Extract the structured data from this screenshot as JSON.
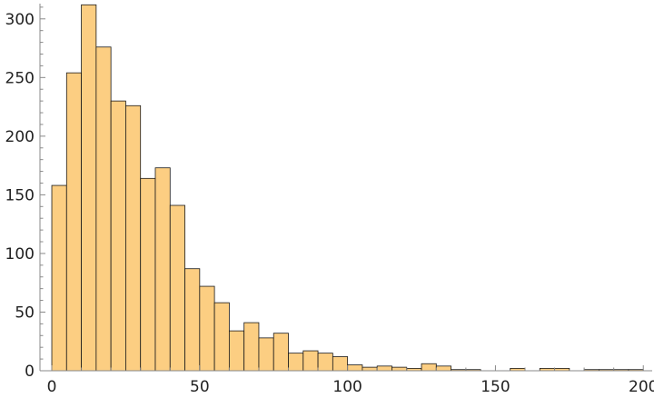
{
  "chart_data": {
    "type": "bar",
    "subtype": "histogram",
    "title": "",
    "xlabel": "",
    "ylabel": "",
    "xlim": [
      -4,
      203
    ],
    "ylim": [
      0,
      313
    ],
    "bin_width": 5,
    "bins_start": [
      0,
      5,
      10,
      15,
      20,
      25,
      30,
      35,
      40,
      45,
      50,
      55,
      60,
      65,
      70,
      75,
      80,
      85,
      90,
      95,
      100,
      105,
      110,
      115,
      120,
      125,
      130,
      135,
      140,
      145,
      150,
      155,
      160,
      165,
      170,
      175,
      180,
      185,
      190,
      195
    ],
    "values": [
      158,
      254,
      312,
      276,
      230,
      226,
      164,
      173,
      141,
      87,
      72,
      58,
      34,
      41,
      28,
      32,
      15,
      17,
      15,
      12,
      5,
      3,
      4,
      3,
      2,
      6,
      4,
      1,
      1,
      0,
      0,
      2,
      0,
      2,
      2,
      0,
      1,
      1,
      1,
      1
    ],
    "x_ticks": [
      0,
      50,
      100,
      150,
      200
    ],
    "x_tick_labels": [
      "0",
      "50",
      "100",
      "150",
      "200"
    ],
    "y_ticks": [
      0,
      50,
      100,
      150,
      200,
      250,
      300
    ],
    "y_tick_labels": [
      "0",
      "50",
      "100",
      "150",
      "200",
      "250",
      "300"
    ],
    "colors": {
      "bar_fill": "#fcce82",
      "bar_stroke": "#1a1a1a",
      "axis": "#888888"
    },
    "grid": false,
    "legend": "none"
  }
}
